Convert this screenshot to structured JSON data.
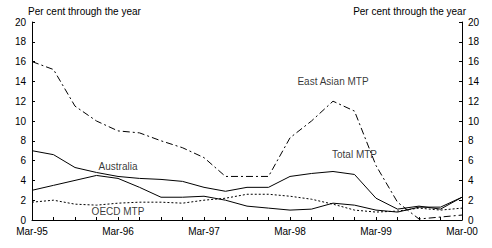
{
  "chart_data": {
    "type": "line",
    "y_label": "Per cent through the year",
    "y2_label": "Per cent through the year",
    "categories": [
      "Mar-95",
      null,
      null,
      null,
      "Mar-96",
      null,
      null,
      null,
      "Mar-97",
      null,
      null,
      null,
      "Mar-98",
      null,
      null,
      null,
      "Mar-99",
      null,
      null,
      null,
      "Mar-00"
    ],
    "series": [
      {
        "name": "East Asian MTP",
        "color": "#000000",
        "line_style": "dashdot",
        "values": [
          16,
          15.2,
          11.5,
          10,
          9,
          8.8,
          8,
          7.3,
          6.3,
          4.4,
          4.4,
          4.4,
          8.3,
          10,
          12,
          11,
          5.5,
          1.8,
          0.1,
          0.3,
          0.5
        ]
      },
      {
        "name": "Total MTP",
        "color": "#000000",
        "line_style": "solid",
        "values": [
          7,
          6.6,
          5.3,
          4.8,
          4.4,
          4.2,
          4.1,
          3.9,
          3.3,
          2.9,
          3.3,
          3.3,
          4.4,
          4.7,
          4.9,
          4.6,
          2.2,
          1.1,
          1.4,
          1.1,
          2.3
        ]
      },
      {
        "name": "Australia",
        "color": "#000000",
        "line_style": "solid",
        "values": [
          3,
          3.5,
          4,
          4.5,
          4.2,
          3.3,
          2.3,
          2.3,
          2.4,
          2.0,
          1.4,
          1.2,
          1.0,
          1.1,
          1.7,
          1.5,
          1.0,
          0.8,
          1.3,
          1.3,
          2.3
        ]
      },
      {
        "name": "OECD MTP",
        "color": "#000000",
        "line_style": "dotted",
        "values": [
          1.8,
          2.0,
          1.6,
          1.5,
          1.7,
          1.8,
          1.8,
          1.7,
          2.0,
          2.2,
          2.6,
          2.6,
          2.4,
          2.1,
          1.6,
          1.0,
          0.8,
          0.9,
          1.2,
          1.0,
          1.2
        ]
      }
    ],
    "annotations": [
      {
        "text": "East Asian MTP",
        "x": 14,
        "y": 14
      },
      {
        "text": "Total MTP",
        "x": 15,
        "y": 6.6
      },
      {
        "text": "Australia",
        "x": 4,
        "y": 5.4
      },
      {
        "text": "OECD MTP",
        "x": 4,
        "y": 0.9
      }
    ],
    "ylim": [
      0,
      20
    ],
    "yticks": [
      0,
      2,
      4,
      6,
      8,
      10,
      12,
      14,
      16,
      18,
      20
    ],
    "y2lim": [
      0,
      20
    ],
    "y2ticks": [
      0,
      2,
      4,
      6,
      8,
      10,
      12,
      14,
      16,
      18,
      20
    ],
    "grid": false
  }
}
